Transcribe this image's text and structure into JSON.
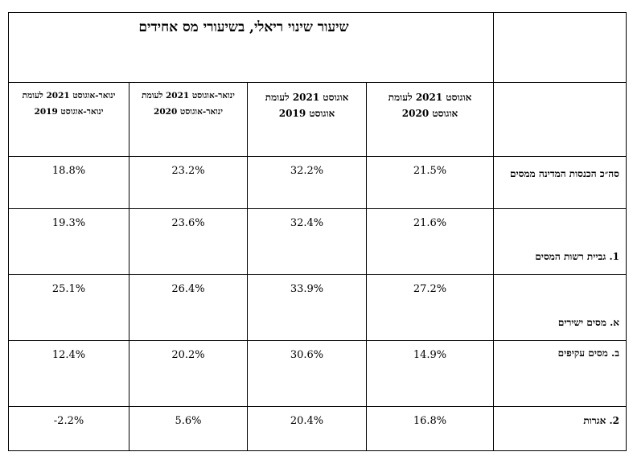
{
  "title": "שיעור שינוי ריאלי, בשיעורי מס אחידים",
  "columns": [
    {
      "line1": "ינואר-אוגוסט 2021 לעומת",
      "line2": "ינואר-אוגוסט 2019"
    },
    {
      "line1": "ינואר-אוגוסט 2021 לעומת",
      "line2": "ינואר-אוגוסט 2020"
    },
    {
      "line1": "אוגוסט 2021 לעומת",
      "line2": "אוגוסט 2019"
    },
    {
      "line1": "אוגוסט 2021 לעומת",
      "line2": "אוגוסט 2020"
    }
  ],
  "rows": [
    {
      "label": "סה״כ הכנסות המדינה ממסים",
      "values": [
        "18.8%",
        "23.2%",
        "32.2%",
        "21.5%"
      ]
    },
    {
      "label": "1. גביית רשות המסים",
      "values": [
        "19.3%",
        "23.6%",
        "32.4%",
        "21.6%"
      ]
    },
    {
      "label": "א. מסים ישירים",
      "values": [
        "25.1%",
        "26.4%",
        "33.9%",
        "27.2%"
      ]
    },
    {
      "label": "ב. מסים עקיפים",
      "values": [
        "12.4%",
        "20.2%",
        "30.6%",
        "14.9%"
      ]
    },
    {
      "label": "2. אגרות",
      "values": [
        "-2.2%",
        "5.6%",
        "20.4%",
        "16.8%"
      ]
    }
  ]
}
